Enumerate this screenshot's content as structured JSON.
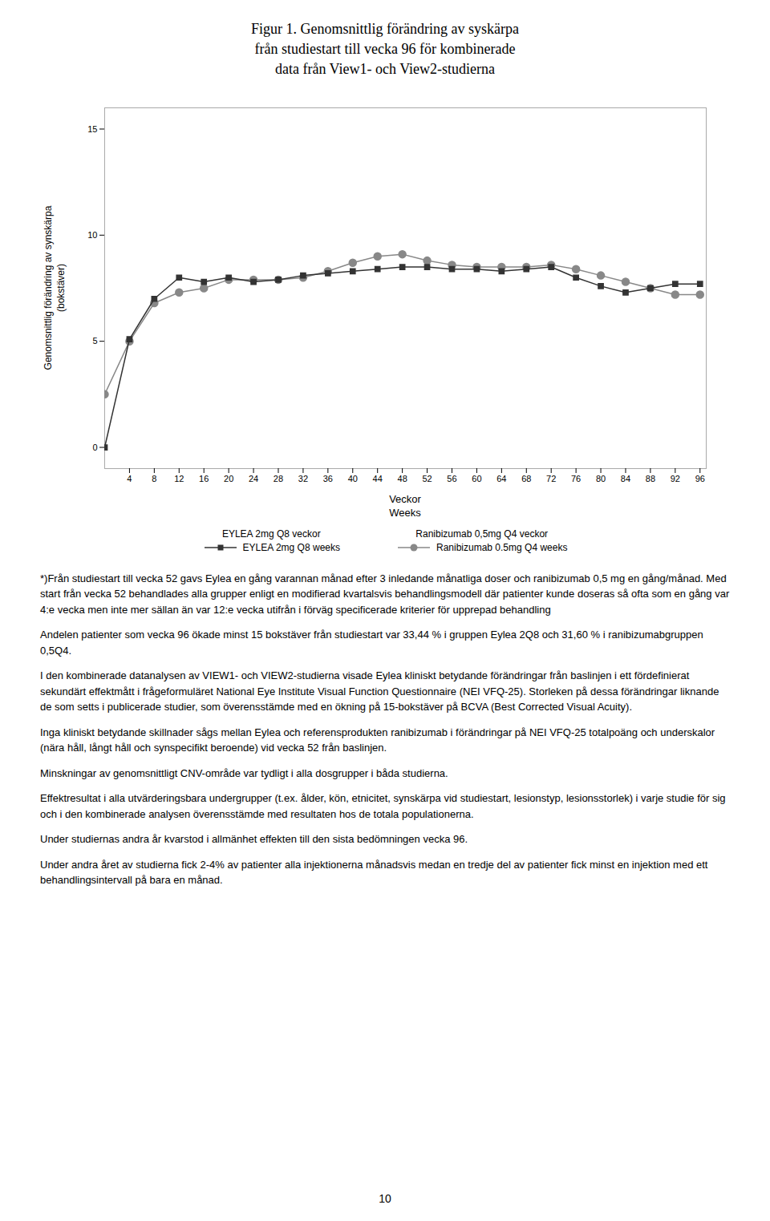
{
  "chart_data": {
    "type": "line",
    "title": "Figur 1. Genomsnittlig förändring av syskärpa\nfrån studiestart till vecka 96 för kombinerade\ndata från View1- och View2-studierna",
    "ylabel": "Genomsnittlig förändring av synskärpa\n(bokstäver)",
    "xlabel": "Veckor\nWeeks",
    "x": [
      0,
      4,
      8,
      12,
      16,
      20,
      24,
      28,
      32,
      36,
      40,
      44,
      48,
      52,
      56,
      60,
      64,
      68,
      72,
      76,
      80,
      84,
      88,
      92,
      96
    ],
    "series": [
      {
        "name": "EYLEA 2mg Q8 veckor\nEYLEA 2mg Q8 weeks",
        "color": "#333333",
        "marker": "square",
        "values": [
          0,
          5.1,
          7.0,
          8.0,
          7.8,
          8.0,
          7.8,
          7.9,
          8.1,
          8.2,
          8.3,
          8.4,
          8.5,
          8.5,
          8.4,
          8.4,
          8.3,
          8.4,
          8.5,
          8.0,
          7.6,
          7.3,
          7.5,
          7.7,
          7.7
        ]
      },
      {
        "name": "Ranibizumab 0,5mg Q4 veckor\nRanibizumab 0.5mg Q4 weeks",
        "color": "#888888",
        "marker": "circle",
        "values": [
          2.5,
          5.0,
          6.8,
          7.3,
          7.5,
          7.9,
          7.9,
          7.9,
          8.0,
          8.3,
          8.7,
          9.0,
          9.1,
          8.8,
          8.6,
          8.5,
          8.5,
          8.5,
          8.6,
          8.4,
          8.1,
          7.8,
          7.5,
          7.2,
          7.2
        ]
      }
    ],
    "xlim": [
      0,
      97
    ],
    "ylim": [
      -1,
      16
    ],
    "xticks": [
      4,
      8,
      12,
      16,
      20,
      24,
      28,
      32,
      36,
      40,
      44,
      48,
      52,
      56,
      60,
      64,
      68,
      72,
      76,
      80,
      84,
      88,
      92,
      96
    ],
    "yticks": [
      0,
      5,
      10,
      15
    ],
    "annotations": [
      "*)Från studiestart till vecka 52 gavs Eylea en gång varannan månad efter 3 inledande månatliga doser och ranibizumab 0,5 mg en gång/månad. Med start från vecka 52 behandlades alla grupper enligt en modifierad kvartalsvis behandlingsmodell där patienter kunde doseras så ofta som en gång var 4:e vecka men inte mer sällan än var 12:e vecka utifrån i förväg specificerade kriterier för upprepad behandling",
      "Andelen patienter som vecka 96 ökade minst 15 bokstäver från studiestart var 33,44 % i gruppen Eylea 2Q8 och 31,60 % i ranibizumabgruppen 0,5Q4.",
      "I den kombinerade datanalysen av VIEW1- och VIEW2-studierna visade Eylea kliniskt betydande förändringar från baslinjen i ett fördefinierat sekundärt effektmått i frågeformuläret National Eye Institute Visual Function Questionnaire (NEI VFQ-25). Storleken på dessa förändringar liknande de som setts i publicerade studier, som överensstämde med en ökning på 15-bokstäver på BCVA (Best Corrected Visual Acuity).",
      "Inga kliniskt betydande skillnader sågs mellan Eylea och referensprodukten ranibizumab i förändringar på NEI VFQ-25 totalpoäng och underskalor (nära håll, långt håll och synspecifikt beroende) vid vecka 52 från baslinjen.",
      "Minskningar av genomsnittligt CNV-område var tydligt i alla dosgrupper i båda studierna.",
      "Effektresultat i alla utvärderingsbara undergrupper (t.ex. ålder, kön, etnicitet, synskärpa vid studiestart, lesionstyp, lesionsstorlek) i varje studie för sig och i den kombinerade analysen överensstämde med resultaten hos de totala populationerna.",
      "Under studiernas andra år kvarstod i allmänhet effekten till den sista bedömningen vecka 96.",
      "Under andra året av studierna fick 2-4% av patienter alla injektionerna månadsvis medan en tredje del av patienter fick minst en injektion med ett behandlingsintervall på bara en månad.",
      "10"
    ]
  }
}
